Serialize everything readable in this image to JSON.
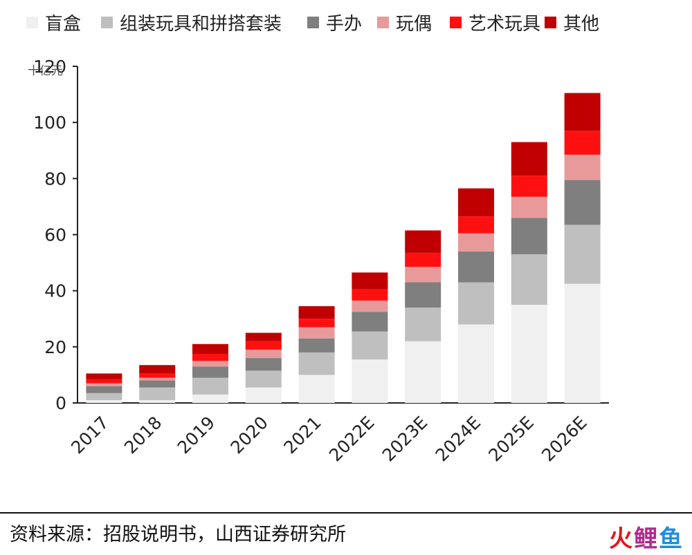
{
  "chart_data": {
    "type": "bar",
    "stacked": true,
    "categories": [
      "2017",
      "2018",
      "2019",
      "2020",
      "2021",
      "2022E",
      "2023E",
      "2024E",
      "2025E",
      "2026E"
    ],
    "ylabel": "十亿元",
    "ylim": [
      0,
      120
    ],
    "yticks": [
      0,
      20,
      40,
      60,
      80,
      100,
      120
    ],
    "grid": false,
    "legend_position": "top",
    "series": [
      {
        "name": "盲盒",
        "color": "#f0f0f0",
        "values": [
          1,
          1,
          3,
          5.5,
          10,
          15.5,
          22,
          28,
          35,
          42.5
        ]
      },
      {
        "name": "组装玩具和拼搭套装",
        "color": "#bfbfbf",
        "values": [
          2.5,
          4.5,
          6,
          6,
          8,
          10,
          12,
          15,
          18,
          21
        ]
      },
      {
        "name": "手办",
        "color": "#7f7f7f",
        "values": [
          2.5,
          2.5,
          4,
          4.5,
          5,
          7,
          9,
          11,
          13,
          16
        ]
      },
      {
        "name": "玩偶",
        "color": "#e89a9a",
        "values": [
          1,
          1,
          2,
          3,
          4,
          4,
          5.5,
          6.5,
          7.5,
          9
        ]
      },
      {
        "name": "艺术玩具",
        "color": "#ff1010",
        "values": [
          1.5,
          1.5,
          2.5,
          3,
          3,
          4,
          5,
          6,
          7.5,
          8.5
        ]
      },
      {
        "name": "其他",
        "color": "#c00000",
        "values": [
          2,
          3,
          3.5,
          3,
          4.5,
          6,
          8,
          10,
          12,
          13.5
        ]
      }
    ]
  },
  "source_text": "资料来源：招股说明书，山西证券研究所",
  "watermark": {
    "part1": "火",
    "part2": "鲤",
    "part3": "鱼"
  }
}
